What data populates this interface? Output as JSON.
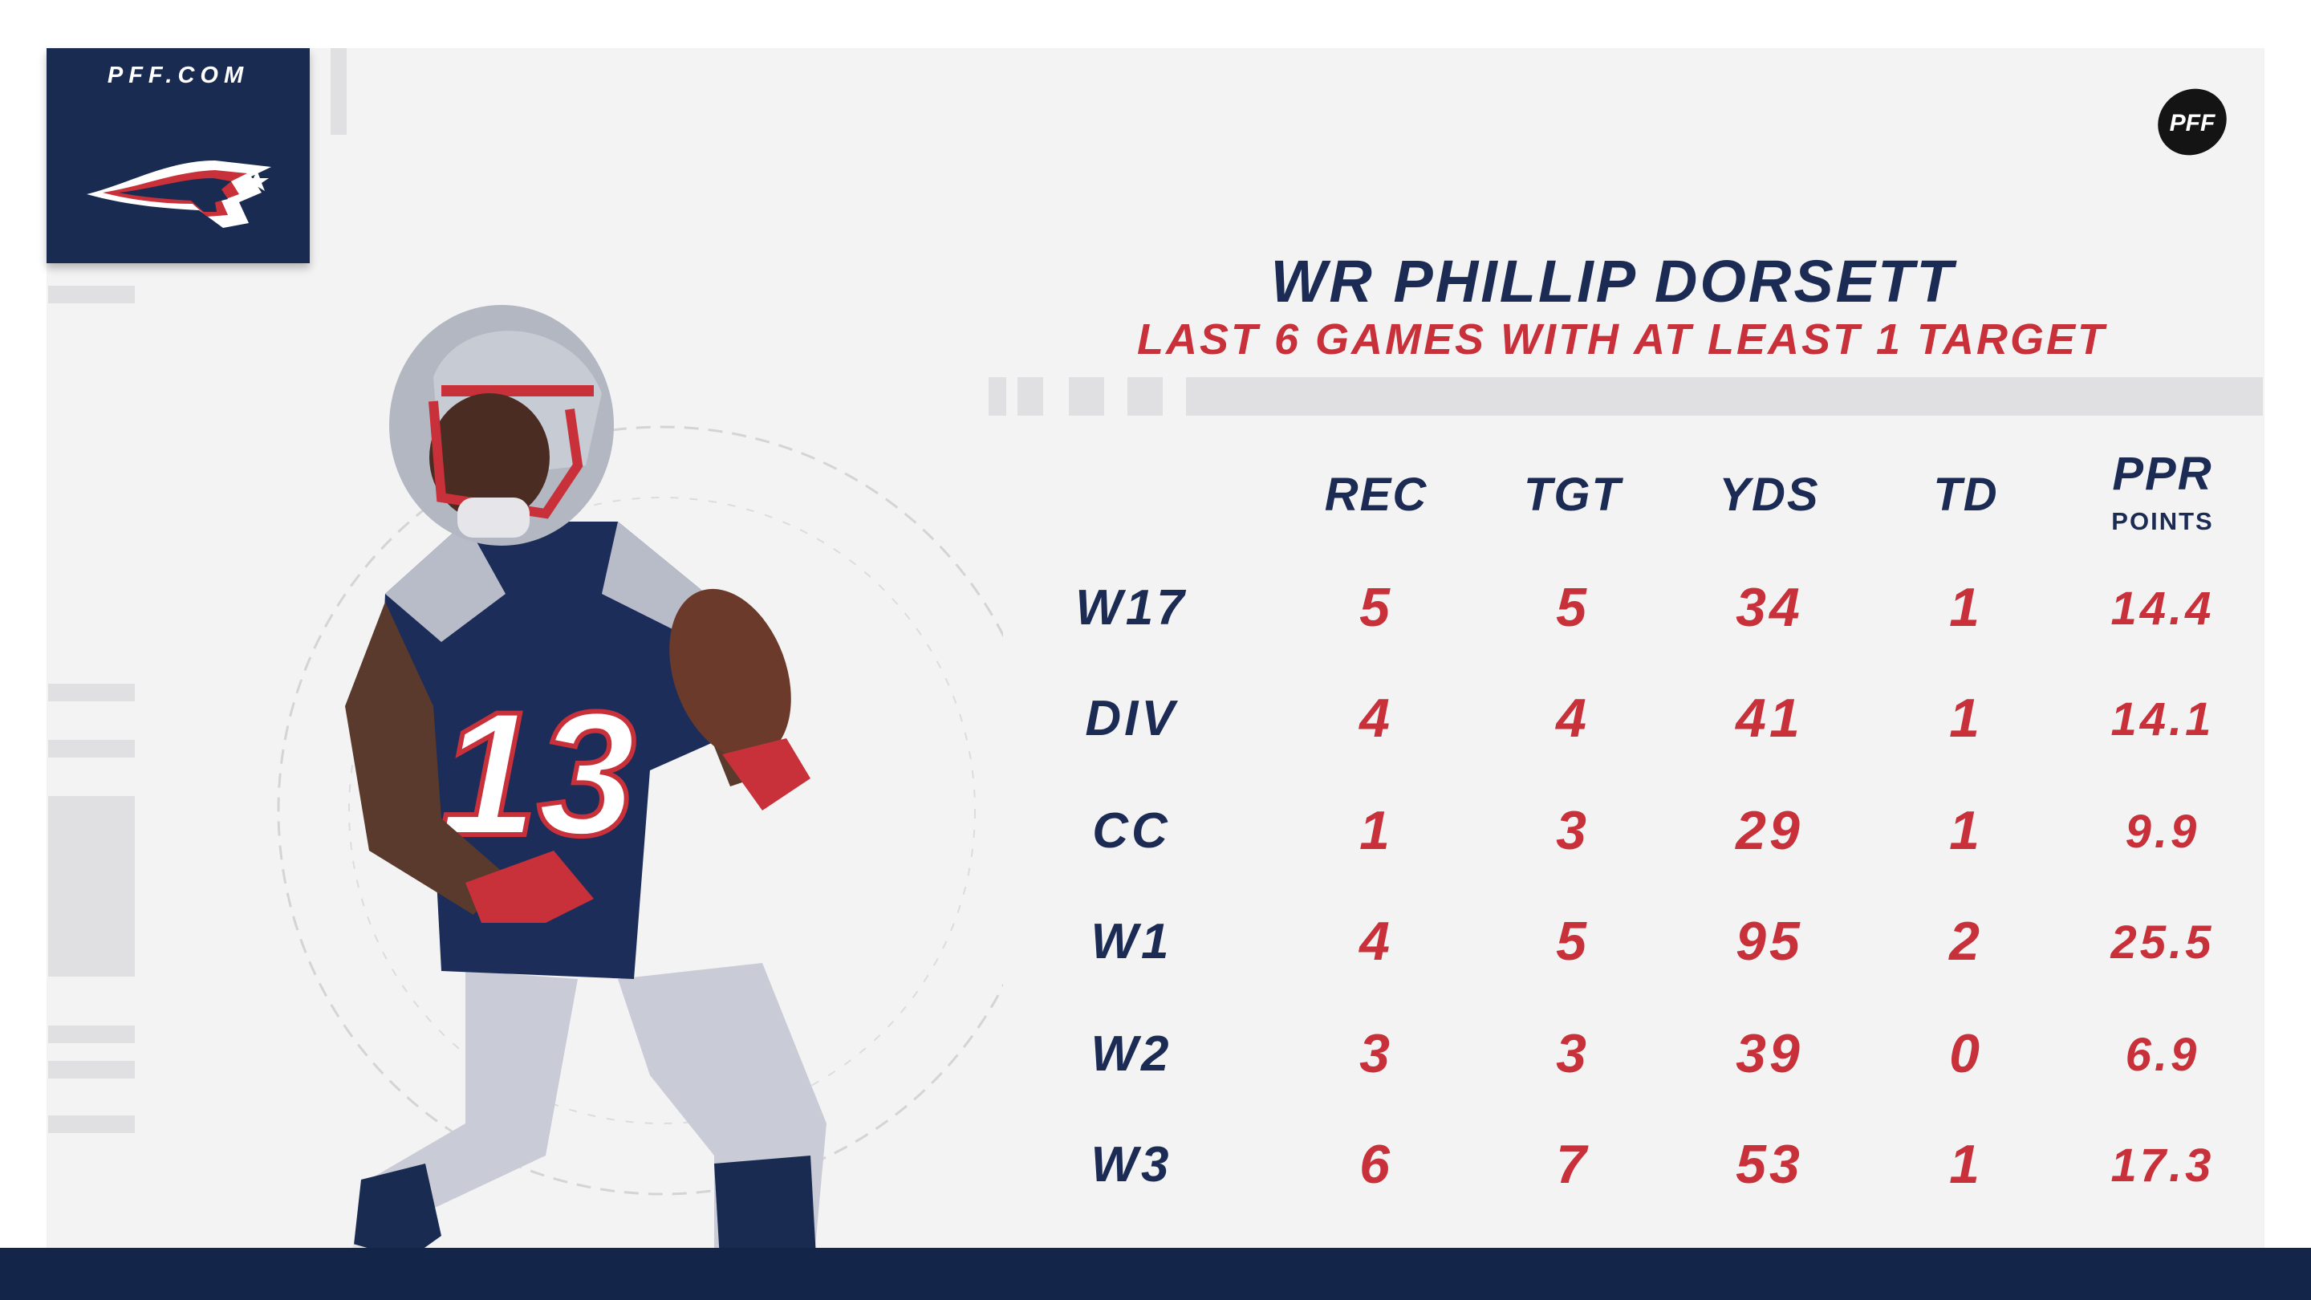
{
  "brand": {
    "site": "PFF.COM",
    "corner_logo": "PFF"
  },
  "title": "WR PHILLIP DORSETT",
  "subtitle": "LAST 6 GAMES WITH AT LEAST 1 TARGET",
  "colors": {
    "navy": "#1b2b54",
    "red": "#c8303a",
    "background": "#f3f3f4"
  },
  "icons": [
    "patriots-logo-icon",
    "pff-logo-icon"
  ],
  "table": {
    "headers": [
      {
        "label": "REC"
      },
      {
        "label": "TGT"
      },
      {
        "label": "YDS"
      },
      {
        "label": "TD"
      },
      {
        "label": "PPR",
        "sub": "POINTS"
      }
    ],
    "rows": [
      {
        "game": "W17",
        "rec": "5",
        "tgt": "5",
        "yds": "34",
        "td": "1",
        "ppr": "14.4"
      },
      {
        "game": "DIV",
        "rec": "4",
        "tgt": "4",
        "yds": "41",
        "td": "1",
        "ppr": "14.1"
      },
      {
        "game": "CC",
        "rec": "1",
        "tgt": "3",
        "yds": "29",
        "td": "1",
        "ppr": "9.9"
      },
      {
        "game": "W1",
        "rec": "4",
        "tgt": "5",
        "yds": "95",
        "td": "2",
        "ppr": "25.5"
      },
      {
        "game": "W2",
        "rec": "3",
        "tgt": "3",
        "yds": "39",
        "td": "0",
        "ppr": "6.9"
      },
      {
        "game": "W3",
        "rec": "6",
        "tgt": "7",
        "yds": "53",
        "td": "1",
        "ppr": "17.3"
      }
    ]
  }
}
